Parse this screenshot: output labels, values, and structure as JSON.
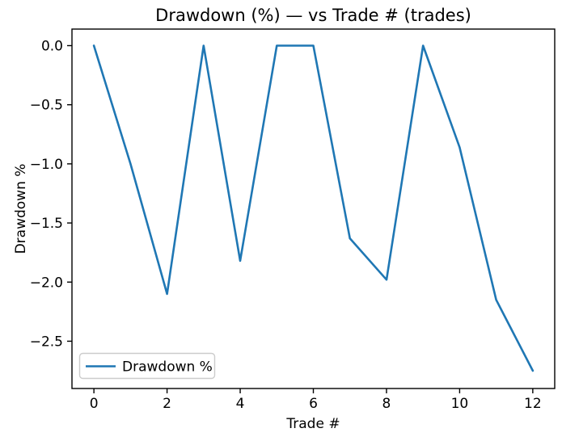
{
  "figure": {
    "background": "#ffffff",
    "frame_color": "#000000",
    "text_color": "#000000"
  },
  "chart_data": {
    "type": "line",
    "title": "Drawdown (%) — vs Trade # (trades)",
    "xlabel": "Trade #",
    "ylabel": "Drawdown %",
    "x": [
      0,
      1,
      2,
      3,
      4,
      5,
      6,
      7,
      8,
      9,
      10,
      11,
      12
    ],
    "series": [
      {
        "name": "Drawdown %",
        "color": "#1f77b4",
        "values": [
          0.0,
          -1.0,
          -2.1,
          0.0,
          -1.82,
          0.0,
          0.0,
          -1.63,
          -1.98,
          0.0,
          -0.86,
          -2.15,
          -2.75
        ]
      }
    ],
    "xlim": [
      -0.6,
      12.6
    ],
    "ylim": [
      -2.9,
      0.14
    ],
    "xticks": {
      "values": [
        0,
        2,
        4,
        6,
        8,
        10,
        12
      ],
      "labels": [
        "0",
        "2",
        "4",
        "6",
        "8",
        "10",
        "12"
      ]
    },
    "yticks": {
      "values": [
        0.0,
        -0.5,
        -1.0,
        -1.5,
        -2.0,
        -2.5
      ],
      "labels": [
        "0.0",
        "−0.5",
        "−1.0",
        "−1.5",
        "−2.0",
        "−2.5"
      ]
    },
    "grid": false,
    "legend": {
      "position": "lower left",
      "entries": [
        {
          "label": "Drawdown %",
          "color": "#1f77b4"
        }
      ]
    }
  }
}
